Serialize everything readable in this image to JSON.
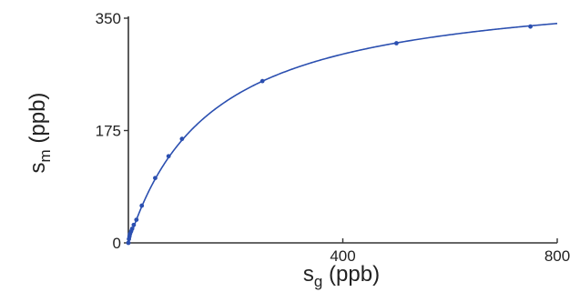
{
  "chart_data": {
    "type": "line",
    "title": "",
    "xlabel": {
      "main": "s",
      "sub": "g",
      "unit": " (ppb)"
    },
    "ylabel": {
      "main": "s",
      "sub": "m",
      "unit": " (ppb)"
    },
    "xlim": [
      0,
      800
    ],
    "ylim": [
      0,
      350
    ],
    "xticks": [
      0,
      400,
      800
    ],
    "xtick_labels": [
      "",
      "400",
      "800"
    ],
    "yticks": [
      0,
      175,
      350
    ],
    "ytick_labels": [
      "0",
      "175",
      "350"
    ],
    "grid": false,
    "line_color": "#2b4fb0",
    "series": [
      {
        "x": [
          0,
          1,
          2,
          3,
          5,
          7,
          10,
          15,
          25,
          50,
          75,
          100,
          250,
          500,
          750
        ],
        "y": [
          0,
          6,
          10,
          14,
          18,
          22,
          28,
          36,
          58,
          101,
          135,
          162,
          252,
          311,
          337
        ]
      }
    ],
    "curve": {
      "type": "saturation",
      "vmax": 408,
      "k": 155,
      "x_end": 800
    }
  }
}
